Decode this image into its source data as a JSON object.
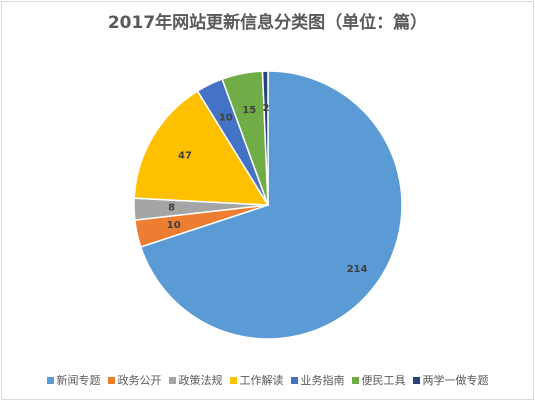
{
  "chart_data": {
    "type": "pie",
    "title": "2017年网站更新信息分类图（单位：篇）",
    "categories": [
      "新闻专题",
      "政务公开",
      "政策法规",
      "工作解读",
      "业务指南",
      "便民工具",
      "两学一做专题"
    ],
    "values": [
      214,
      10,
      8,
      47,
      10,
      15,
      2
    ],
    "colors": [
      "#5b9bd5",
      "#ed7d31",
      "#a5a5a5",
      "#ffc000",
      "#4472c4",
      "#70ad47",
      "#264478"
    ],
    "legend_position": "bottom",
    "data_labels": true
  }
}
